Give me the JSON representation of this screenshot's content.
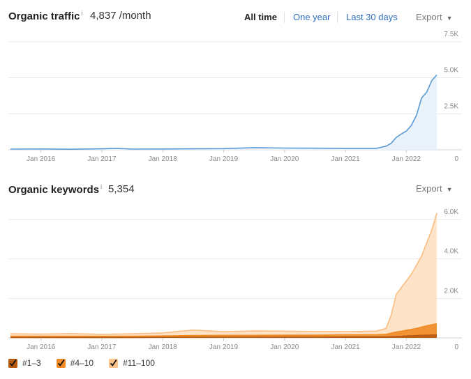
{
  "traffic": {
    "title": "Organic traffic",
    "info": "i",
    "value": "4,837 /month",
    "tabs": [
      {
        "label": "All time",
        "active": true
      },
      {
        "label": "One year",
        "active": false
      },
      {
        "label": "Last 30 days",
        "active": false
      }
    ],
    "export": "Export"
  },
  "keywords": {
    "title": "Organic keywords",
    "info": "i",
    "value": "5,354",
    "export": "Export"
  },
  "legend": [
    {
      "label": "#1–3",
      "color": "#b85a0e",
      "checked": true
    },
    {
      "label": "#4–10",
      "color": "#f08a24",
      "checked": true
    },
    {
      "label": "#11–100",
      "color": "#fcc48a",
      "checked": true
    }
  ],
  "colors": {
    "traffic_line": "#5b9bd5",
    "traffic_fill": "#e9f2fb",
    "kw_top3": "#b85a0e",
    "kw_4_10": "#f08a24",
    "kw_11_100_line": "#fbbd82",
    "kw_11_100_fill": "#fde3c8",
    "grid": "#e8e8e8"
  },
  "chart_data": [
    {
      "type": "line",
      "title": "Organic traffic",
      "x_ticks": [
        "Jan 2016",
        "Jan 2017",
        "Jan 2018",
        "Jan 2019",
        "Jan 2020",
        "Jan 2021",
        "Jan 2022"
      ],
      "y_ticks": [
        "0",
        "2.5K",
        "5.0K",
        "7.5K"
      ],
      "ylim": [
        0,
        7500
      ],
      "xlim": [
        "2015-07",
        "2022-07"
      ],
      "grid": true,
      "series": [
        {
          "x": [
            "2015-07",
            "2016-01",
            "2016-07",
            "2017-01",
            "2017-04",
            "2017-07",
            "2018-01",
            "2018-07",
            "2019-01",
            "2019-07",
            "2020-01",
            "2020-07",
            "2021-01",
            "2021-07",
            "2021-09",
            "2021-10",
            "2021-11",
            "2021-12",
            "2022-01",
            "2022-02",
            "2022-03",
            "2022-04",
            "2022-05",
            "2022-06",
            "2022-07"
          ],
          "values": [
            50,
            60,
            40,
            70,
            100,
            50,
            60,
            70,
            80,
            150,
            120,
            110,
            90,
            90,
            250,
            450,
            850,
            1100,
            1300,
            1700,
            2400,
            3600,
            4000,
            4800,
            5200
          ]
        }
      ]
    },
    {
      "type": "area",
      "title": "Organic keywords",
      "x_ticks": [
        "Jan 2016",
        "Jan 2017",
        "Jan 2018",
        "Jan 2019",
        "Jan 2020",
        "Jan 2021",
        "Jan 2022"
      ],
      "y_ticks": [
        "0",
        "2.0K",
        "4.0K",
        "6.0K"
      ],
      "ylim": [
        0,
        6000
      ],
      "xlim": [
        "2015-07",
        "2022-07"
      ],
      "grid": true,
      "x": [
        "2015-07",
        "2016-01",
        "2016-07",
        "2017-01",
        "2017-07",
        "2018-01",
        "2018-07",
        "2019-01",
        "2019-07",
        "2020-01",
        "2020-07",
        "2021-01",
        "2021-07",
        "2021-09",
        "2021-10",
        "2021-11",
        "2021-12",
        "2022-01",
        "2022-02",
        "2022-03",
        "2022-04",
        "2022-05",
        "2022-06",
        "2022-07"
      ],
      "series": [
        {
          "name": "#1–3",
          "values": [
            20,
            20,
            20,
            20,
            20,
            30,
            40,
            40,
            40,
            40,
            40,
            50,
            50,
            50,
            60,
            70,
            80,
            100,
            110,
            120,
            130,
            140,
            150,
            160
          ]
        },
        {
          "name": "#4–10",
          "values": [
            60,
            60,
            60,
            60,
            60,
            70,
            80,
            90,
            90,
            100,
            100,
            110,
            110,
            130,
            180,
            230,
            260,
            290,
            320,
            360,
            420,
            470,
            520,
            560
          ]
        },
        {
          "name": "#11–100",
          "values": [
            130,
            110,
            140,
            100,
            130,
            150,
            280,
            180,
            220,
            200,
            180,
            160,
            180,
            300,
            900,
            1900,
            2200,
            2500,
            2800,
            3200,
            3600,
            4200,
            4800,
            5600
          ]
        }
      ]
    }
  ]
}
